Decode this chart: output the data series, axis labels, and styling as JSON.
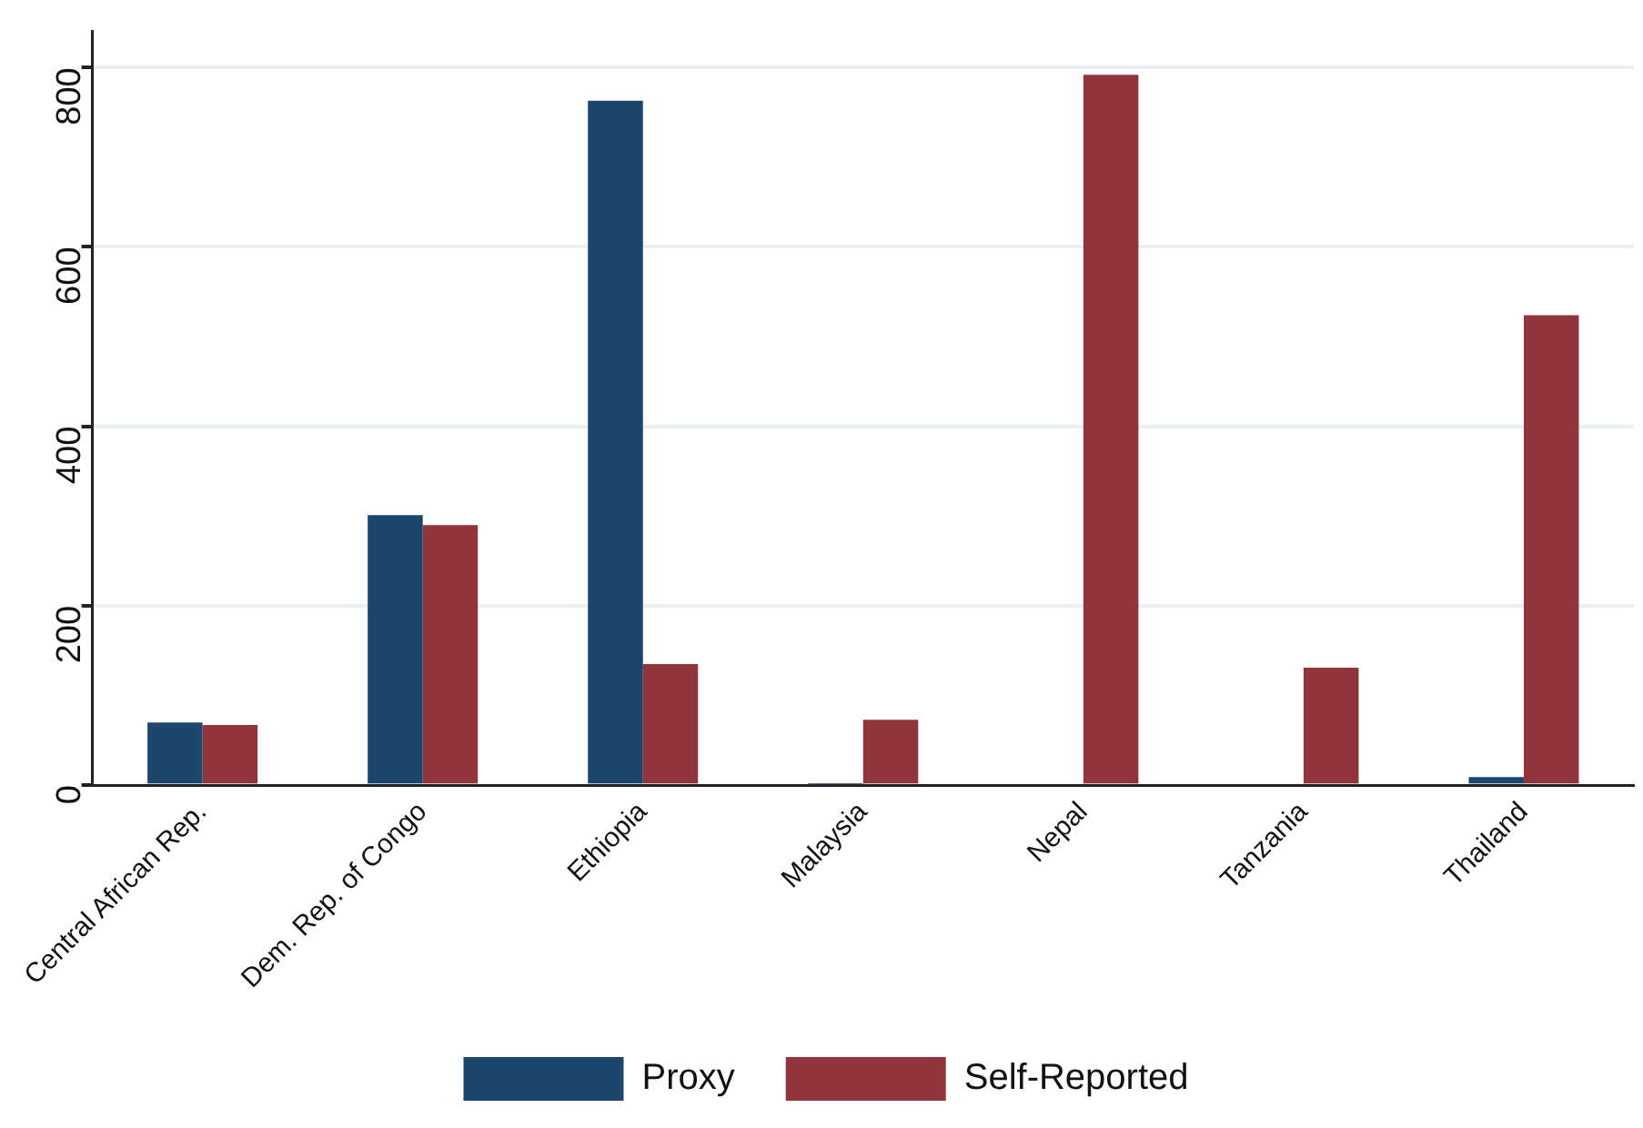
{
  "chart_data": {
    "type": "bar",
    "categories": [
      "Central African Rep.",
      "Dem. Rep. of Congo",
      "Ethiopia",
      "Malaysia",
      "Nepal",
      "Tanzania",
      "Thailand"
    ],
    "series": [
      {
        "name": "Proxy",
        "color": "#1c466d",
        "values": [
          70,
          301,
          763,
          1,
          2,
          2,
          9
        ]
      },
      {
        "name": "Self-Reported",
        "color": "#90353b",
        "values": [
          67,
          290,
          135,
          73,
          792,
          131,
          524
        ]
      }
    ],
    "ylim": [
      0,
      840
    ],
    "yticks": [
      0,
      200,
      400,
      600,
      800
    ],
    "grid": "y",
    "legend": "bottom"
  }
}
